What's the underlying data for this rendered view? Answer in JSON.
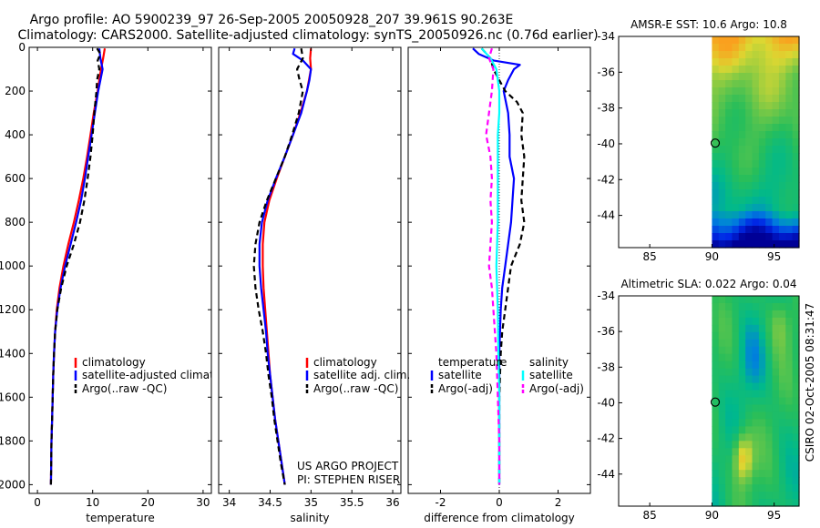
{
  "title_line1": "Argo profile: AO 5900239_97 26-Sep-2005 20050928_207 39.961S 90.263E",
  "title_line2": "Climatology: CARS2000. Satellite-adjusted climatology: synTS_20050926.nc (0.76d earlier)",
  "side_caption": "CSIRO 02-Oct-2005 08:31:47",
  "colors": {
    "red": "#ff0000",
    "blue": "#0000ff",
    "black": "#000000",
    "cyan": "#00ffff",
    "magenta": "#ff00ff"
  },
  "chart_data": [
    {
      "type": "line",
      "id": "temp",
      "xlabel": "temperature",
      "xlim": [
        -1.5,
        31.5
      ],
      "ylim": [
        0,
        2040
      ],
      "xticks": [
        0,
        10,
        20,
        30
      ],
      "yticks": [
        0,
        200,
        400,
        600,
        800,
        1000,
        1200,
        1400,
        1600,
        1800,
        2000
      ],
      "legend": [
        "climatology",
        "satellite-adjusted climatology",
        "Argo(..raw -QC)"
      ],
      "series": [
        {
          "name": "climatology",
          "color": "red",
          "dash": "",
          "depth": [
            5,
            50,
            100,
            200,
            300,
            400,
            500,
            600,
            700,
            800,
            900,
            1000,
            1100,
            1200,
            1300,
            1400,
            1500,
            1600,
            1700,
            1800,
            1900,
            2000
          ],
          "values": [
            12.2,
            11.9,
            11.5,
            10.9,
            10.2,
            9.6,
            9.0,
            8.3,
            7.5,
            6.6,
            5.6,
            4.7,
            4.0,
            3.5,
            3.2,
            3.0,
            2.85,
            2.75,
            2.65,
            2.55,
            2.5,
            2.45
          ]
        },
        {
          "name": "satellite-adjusted climatology",
          "color": "blue",
          "dash": "",
          "depth": [
            5,
            50,
            100,
            150,
            200,
            300,
            400,
            500,
            600,
            700,
            800,
            900,
            1000,
            1100,
            1200,
            1300,
            1400,
            1500,
            1600,
            1700,
            1800,
            1900,
            2000
          ],
          "values": [
            11.2,
            11.4,
            11.8,
            11.4,
            11.0,
            10.4,
            9.8,
            9.2,
            8.6,
            7.9,
            7.0,
            6.0,
            5.0,
            4.2,
            3.6,
            3.2,
            3.0,
            2.85,
            2.75,
            2.65,
            2.55,
            2.5,
            2.45
          ]
        },
        {
          "name": "Argo(..raw -QC)",
          "color": "black",
          "dash": "6,4",
          "depth": [
            5,
            30,
            60,
            100,
            150,
            200,
            300,
            400,
            500,
            600,
            700,
            800,
            900,
            1000,
            1100,
            1200,
            1300,
            1400,
            1500,
            1600,
            1700,
            1800,
            1900,
            2000
          ],
          "values": [
            10.8,
            11.4,
            10.9,
            11.2,
            10.8,
            10.7,
            10.3,
            10.0,
            9.6,
            9.1,
            8.5,
            7.7,
            6.6,
            5.3,
            4.3,
            3.6,
            3.2,
            3.0,
            2.85,
            2.75,
            2.65,
            2.55,
            2.5,
            2.45
          ]
        }
      ]
    },
    {
      "type": "line",
      "id": "sal",
      "xlabel": "salinity",
      "xlim": [
        33.87,
        36.1
      ],
      "ylim": [
        0,
        2040
      ],
      "xticks": [
        34,
        34.5,
        35,
        35.5,
        36
      ],
      "legend": [
        "climatology",
        "satellite adj. clim.",
        "Argo(..raw -QC)"
      ],
      "annotation": [
        "US ARGO PROJECT",
        "PI: STEPHEN RISER"
      ],
      "series": [
        {
          "name": "climatology",
          "color": "red",
          "dash": "",
          "depth": [
            5,
            50,
            100,
            200,
            300,
            400,
            500,
            600,
            700,
            800,
            900,
            1000,
            1100,
            1200,
            1300,
            1400,
            1500,
            1600,
            1700,
            1800,
            1900,
            2000
          ],
          "values": [
            35.0,
            34.99,
            35.0,
            34.95,
            34.87,
            34.78,
            34.68,
            34.58,
            34.49,
            34.43,
            34.41,
            34.41,
            34.42,
            34.44,
            34.46,
            34.48,
            34.5,
            34.53,
            34.56,
            34.6,
            34.64,
            34.68
          ]
        },
        {
          "name": "satellite adj. clim.",
          "color": "blue",
          "dash": "",
          "depth": [
            5,
            30,
            60,
            100,
            150,
            200,
            300,
            400,
            500,
            600,
            700,
            800,
            900,
            1000,
            1100,
            1200,
            1300,
            1400,
            1500,
            1600,
            1700,
            1800,
            1900,
            2000
          ],
          "values": [
            34.8,
            34.78,
            34.9,
            35.0,
            34.98,
            34.95,
            34.88,
            34.78,
            34.68,
            34.57,
            34.47,
            34.4,
            34.37,
            34.37,
            34.39,
            34.42,
            34.45,
            34.47,
            34.5,
            34.53,
            34.56,
            34.6,
            34.64,
            34.68
          ]
        },
        {
          "name": "Argo(..raw -QC)",
          "color": "black",
          "dash": "6,4",
          "depth": [
            5,
            50,
            100,
            150,
            200,
            300,
            400,
            500,
            600,
            700,
            800,
            900,
            1000,
            1100,
            1200,
            1300,
            1400,
            1500,
            1600,
            1700,
            1800,
            1900,
            2000
          ],
          "values": [
            34.88,
            34.9,
            34.83,
            34.86,
            34.9,
            34.85,
            34.77,
            34.68,
            34.57,
            34.46,
            34.37,
            34.32,
            34.3,
            34.32,
            34.36,
            34.41,
            34.45,
            34.48,
            34.52,
            34.55,
            34.59,
            34.63,
            34.68
          ]
        }
      ]
    },
    {
      "type": "line",
      "id": "diff",
      "xlabel": "difference from climatology",
      "xlim": [
        -3.1,
        3.1
      ],
      "ylim": [
        0,
        2040
      ],
      "xticks": [
        -2,
        0,
        2
      ],
      "legend_left_title": "temperature",
      "legend_left": [
        "satellite",
        "Argo(-adj)"
      ],
      "legend_right_title": "salinity",
      "legend_right": [
        "satellite",
        "Argo(-adj)"
      ],
      "series": [
        {
          "name": "temperature satellite",
          "color": "blue",
          "dash": "",
          "depth": [
            5,
            30,
            60,
            80,
            100,
            150,
            200,
            300,
            400,
            500,
            600,
            700,
            800,
            900,
            1000,
            1100,
            1200,
            1400,
            1600,
            1800,
            2000
          ],
          "values": [
            -0.9,
            -0.7,
            -0.2,
            0.7,
            0.5,
            0.3,
            0.15,
            0.3,
            0.35,
            0.35,
            0.5,
            0.45,
            0.4,
            0.3,
            0.2,
            0.1,
            0.05,
            0.0,
            0.0,
            0.0,
            0.0
          ]
        },
        {
          "name": "temperature Argo(-adj)",
          "color": "black",
          "dash": "6,4",
          "depth": [
            5,
            50,
            100,
            200,
            250,
            300,
            400,
            500,
            600,
            700,
            800,
            900,
            1000,
            1100,
            1200,
            1300,
            1400,
            1600,
            1800,
            2000
          ],
          "values": [
            -0.6,
            -0.3,
            -0.2,
            0.2,
            0.6,
            0.8,
            0.75,
            0.85,
            0.8,
            0.75,
            0.85,
            0.7,
            0.4,
            0.3,
            0.2,
            0.1,
            0.05,
            0.0,
            0.0,
            0.0
          ]
        },
        {
          "name": "salinity satellite",
          "color": "cyan",
          "dash": "",
          "depth": [
            5,
            50,
            100,
            200,
            300,
            400,
            600,
            800,
            1000,
            1200,
            1400,
            1600,
            1800,
            2000
          ],
          "values": [
            -0.6,
            -0.3,
            -0.1,
            0.0,
            0.0,
            -0.05,
            -0.05,
            -0.05,
            -0.1,
            -0.05,
            -0.03,
            0.0,
            0.0,
            0.0
          ]
        },
        {
          "name": "salinity Argo(-adj)",
          "color": "magenta",
          "dash": "6,4",
          "depth": [
            5,
            50,
            100,
            200,
            300,
            400,
            500,
            600,
            700,
            800,
            900,
            1000,
            1100,
            1200,
            1400,
            1600,
            1800,
            2000
          ],
          "values": [
            -0.25,
            -0.35,
            -0.2,
            -0.25,
            -0.35,
            -0.45,
            -0.3,
            -0.25,
            -0.3,
            -0.25,
            -0.3,
            -0.35,
            -0.25,
            -0.2,
            -0.1,
            -0.05,
            0.0,
            0.0
          ]
        }
      ]
    },
    {
      "type": "heatmap",
      "id": "sst",
      "title": "AMSR-E SST: 10.6 Argo: 10.8",
      "xlim": [
        82.5,
        97
      ],
      "ylim": [
        -45.8,
        -34
      ],
      "xticks": [
        85,
        90,
        95
      ],
      "yticks": [
        -34,
        -36,
        -38,
        -40,
        -42,
        -44
      ],
      "data_xmin": 90,
      "marker": {
        "lon": 90.263,
        "lat": -39.961
      }
    },
    {
      "type": "heatmap",
      "id": "sla",
      "title": "Altimetric SLA: 0.022 Argo: 0.04",
      "xlim": [
        82.5,
        97
      ],
      "ylim": [
        -45.8,
        -34
      ],
      "xticks": [
        85,
        90,
        95
      ],
      "yticks": [
        -34,
        -36,
        -38,
        -40,
        -42,
        -44
      ],
      "data_xmin": 90,
      "marker": {
        "lon": 90.263,
        "lat": -39.961
      }
    }
  ]
}
